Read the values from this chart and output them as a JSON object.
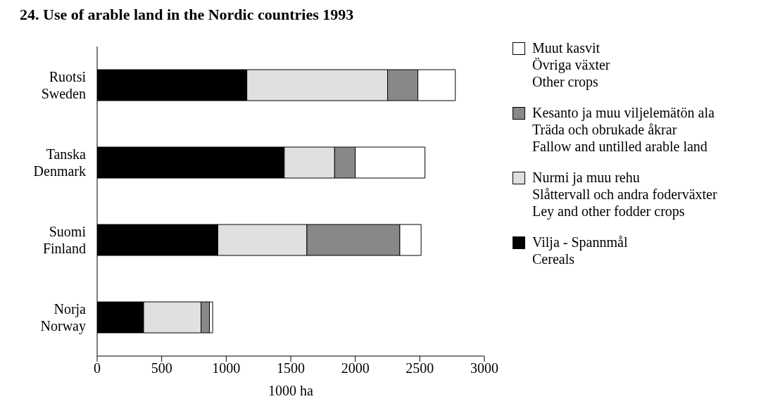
{
  "chart_data": {
    "type": "bar",
    "orientation": "horizontal",
    "stacked": true,
    "title": "24. Use of arable land in the Nordic countries 1993",
    "xlabel": "1000 ha",
    "categories": [
      "Ruotsi\nSweden",
      "Tanska\nDenmark",
      "Suomi\nFinland",
      "Norja\nNorway"
    ],
    "series": [
      {
        "name": "Vilja - Spannmål\nCereals",
        "color": "#000000",
        "values": [
          1160,
          1450,
          935,
          360
        ]
      },
      {
        "name": "Nurmi ja muu rehu\nSlåttervall och andra foderväxter\nLey and other fodder crops",
        "color": "#e0e0e0",
        "values": [
          1090,
          390,
          690,
          445
        ]
      },
      {
        "name": "Kesanto ja muu viljelemätön ala\nTräda och obrukade åkrar\nFallow and untilled arable land",
        "color": "#888888",
        "values": [
          235,
          160,
          720,
          65
        ]
      },
      {
        "name": "Muut kasvit\nÖvriga växter\nOther crops",
        "color": "#ffffff",
        "values": [
          290,
          540,
          165,
          25
        ]
      }
    ],
    "xlim": [
      0,
      3000
    ],
    "xticks": [
      0,
      500,
      1000,
      1500,
      2000,
      2500,
      3000
    ],
    "grid": false,
    "legend": "right"
  }
}
